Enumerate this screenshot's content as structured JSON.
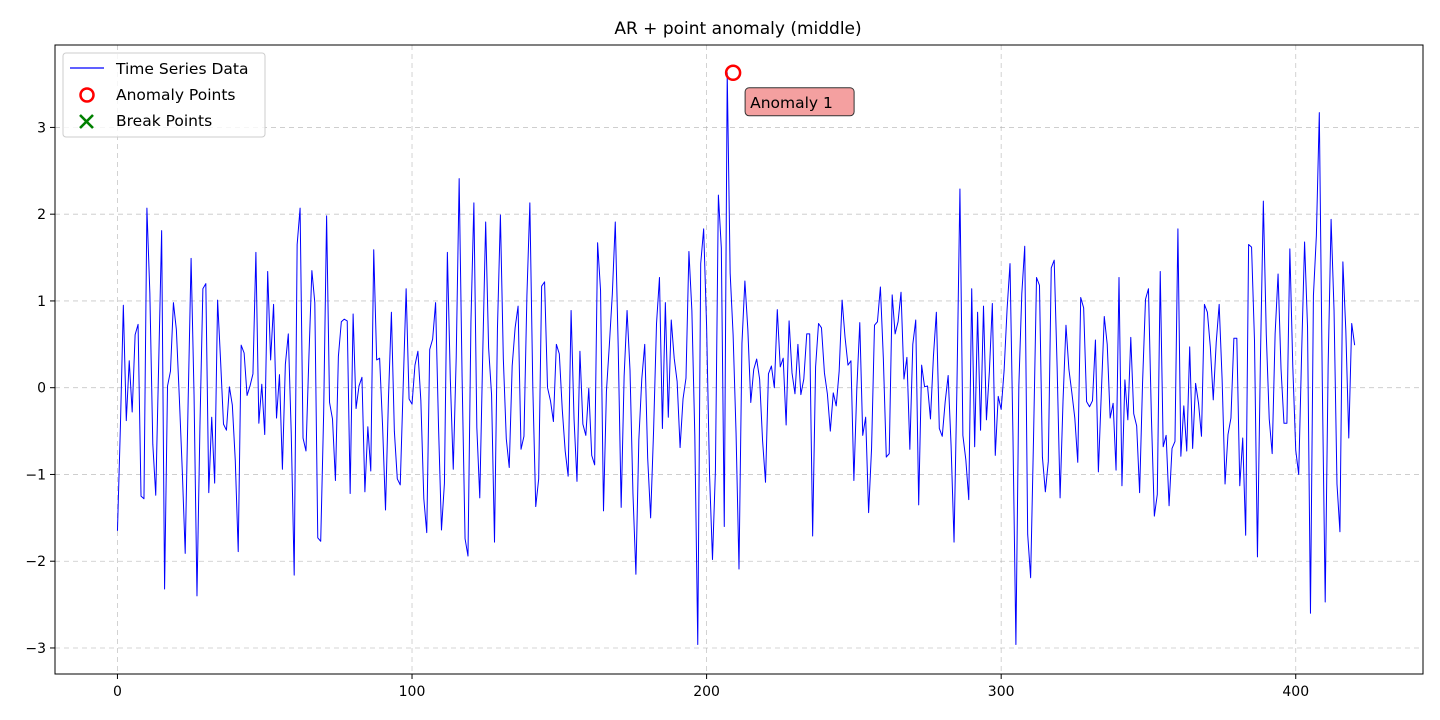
{
  "chart_data": {
    "type": "line",
    "title": "AR + point anomaly (middle)",
    "xlabel": "",
    "ylabel": "",
    "xlim": [
      -21.2,
      443.2
    ],
    "ylim": [
      -3.3,
      3.95
    ],
    "x_ticks": [
      0,
      100,
      200,
      300,
      400
    ],
    "y_ticks": [
      -3,
      -2,
      -1,
      0,
      1,
      2,
      3
    ],
    "x_tick_labels": [
      "0",
      "100",
      "200",
      "300",
      "400"
    ],
    "y_tick_labels": [
      "−3",
      "−2",
      "−1",
      "0",
      "1",
      "2",
      "3"
    ],
    "grid": true,
    "legend_position": "top-left",
    "legend": [
      {
        "label": "Time Series Data",
        "marker": "line",
        "color": "#0000ff"
      },
      {
        "label": "Anomaly Points",
        "marker": "circle",
        "color": "#ff0000"
      },
      {
        "label": "Break Points",
        "marker": "x",
        "color": "#008000"
      }
    ],
    "series": [
      {
        "name": "Time Series Data",
        "color": "#0000ff",
        "values": [
          -1.65,
          -0.45,
          0.95,
          -0.38,
          0.31,
          -0.28,
          0.61,
          0.73,
          -1.25,
          -1.28,
          2.07,
          1.09,
          -0.65,
          -1.24,
          0.28,
          1.81,
          -2.32,
          0.02,
          0.19,
          0.98,
          0.67,
          -0.11,
          -0.95,
          -1.91,
          -0.15,
          1.49,
          -0.08,
          -2.4,
          -0.45,
          1.14,
          1.2,
          -1.21,
          -0.34,
          -1.1,
          1.01,
          0.32,
          -0.42,
          -0.49,
          0.01,
          -0.2,
          -0.84,
          -1.89,
          0.49,
          0.4,
          -0.09,
          0.02,
          0.16,
          1.56,
          -0.41,
          0.04,
          -0.54,
          1.34,
          0.32,
          0.96,
          -0.35,
          0.15,
          -0.94,
          0.27,
          0.62,
          -0.53,
          -2.16,
          1.65,
          2.07,
          -0.58,
          -0.73,
          0.36,
          1.35,
          0.98,
          -1.73,
          -1.77,
          -0.3,
          1.98,
          -0.17,
          -0.36,
          -1.07,
          0.36,
          0.76,
          0.79,
          0.77,
          -1.22,
          0.85,
          -0.24,
          0.02,
          0.12,
          -1.2,
          -0.45,
          -0.96,
          1.59,
          0.32,
          0.34,
          -0.44,
          -1.41,
          -0.12,
          0.87,
          -0.5,
          -1.05,
          -1.12,
          0.02,
          1.14,
          -0.13,
          -0.19,
          0.26,
          0.42,
          -0.15,
          -1.28,
          -1.67,
          0.44,
          0.56,
          0.98,
          -0.45,
          -1.64,
          -1.1,
          1.56,
          0.1,
          -0.94,
          0.35,
          2.41,
          0.12,
          -1.74,
          -1.94,
          0.76,
          2.13,
          -0.46,
          -1.27,
          0.38,
          1.91,
          0.46,
          -0.08,
          -1.78,
          0.68,
          1.99,
          0.33,
          -0.59,
          -0.92,
          0.25,
          0.69,
          0.94,
          -0.71,
          -0.56,
          1.06,
          2.13,
          0.01,
          -1.37,
          -1.05,
          1.17,
          1.22,
          0.0,
          -0.15,
          -0.39,
          0.5,
          0.39,
          -0.25,
          -0.73,
          -1.02,
          0.89,
          -0.36,
          -1.08,
          0.42,
          -0.42,
          -0.55,
          -0.01,
          -0.78,
          -0.89,
          1.67,
          1.12,
          -1.42,
          -0.04,
          0.5,
          1.08,
          1.91,
          0.46,
          -1.38,
          0.13,
          0.89,
          0.2,
          -1.22,
          -2.15,
          -0.6,
          0.1,
          0.5,
          -0.81,
          -1.5,
          -0.5,
          0.74,
          1.27,
          -0.47,
          0.98,
          -0.34,
          0.78,
          0.34,
          0.07,
          -0.69,
          -0.13,
          0.11,
          1.57,
          0.89,
          -0.55,
          -2.96,
          1.43,
          1.83,
          0.71,
          -1.0,
          -1.98,
          -0.95,
          2.22,
          1.61,
          -1.6,
          3.63,
          1.32,
          0.61,
          -0.52,
          -2.09,
          0.51,
          1.23,
          0.67,
          -0.17,
          0.21,
          0.33,
          0.1,
          -0.61,
          -1.09,
          0.16,
          0.25,
          0.0,
          0.9,
          0.24,
          0.34,
          -0.43,
          0.77,
          0.17,
          -0.07,
          0.5,
          -0.08,
          0.1,
          0.62,
          0.62,
          -1.71,
          0.24,
          0.74,
          0.69,
          0.17,
          -0.07,
          -0.5,
          -0.06,
          -0.21,
          0.19,
          1.01,
          0.58,
          0.26,
          0.31,
          -1.07,
          -0.01,
          0.75,
          -0.55,
          -0.34,
          -1.44,
          -0.7,
          0.72,
          0.76,
          1.16,
          0.34,
          -0.8,
          -0.76,
          1.07,
          0.62,
          0.76,
          1.1,
          0.1,
          0.35,
          -0.71,
          0.5,
          0.78,
          -1.35,
          0.26,
          0.01,
          0.02,
          -0.36,
          0.36,
          0.87,
          -0.47,
          -0.56,
          -0.16,
          0.14,
          -0.67,
          -1.78,
          0.05,
          2.29,
          -0.55,
          -0.83,
          -1.29,
          1.14,
          -0.68,
          0.87,
          -0.49,
          0.94,
          -0.37,
          0.19,
          0.97,
          -0.78,
          -0.1,
          -0.25,
          0.2,
          0.9,
          1.43,
          -0.55,
          -2.96,
          0.02,
          1.08,
          1.63,
          -1.69,
          -2.19,
          -0.56,
          1.27,
          1.18,
          -0.8,
          -1.2,
          -0.85,
          1.38,
          1.47,
          0.23,
          -1.27,
          -0.15,
          0.72,
          0.21,
          -0.06,
          -0.35,
          -0.86,
          1.04,
          0.92,
          -0.16,
          -0.22,
          -0.15,
          0.55,
          -0.97,
          -0.06,
          0.82,
          0.5,
          -0.35,
          -0.18,
          -0.95,
          1.27,
          -1.13,
          0.09,
          -0.37,
          0.58,
          -0.3,
          -0.44,
          -1.21,
          0.06,
          1.02,
          1.14,
          -0.34,
          -1.48,
          -1.23,
          1.34,
          -0.68,
          -0.55,
          -1.36,
          -0.7,
          -0.62,
          1.83,
          -0.79,
          -0.21,
          -0.73,
          0.47,
          -0.7,
          0.05,
          -0.18,
          -0.56,
          0.96,
          0.87,
          0.47,
          -0.14,
          0.52,
          0.96,
          0.1,
          -1.11,
          -0.54,
          -0.35,
          0.57,
          0.57,
          -1.13,
          -0.58,
          -1.7,
          1.65,
          1.62,
          0.54,
          -1.95,
          0.31,
          2.15,
          0.61,
          -0.36,
          -0.76,
          0.62,
          1.31,
          0.22,
          -0.41,
          -0.41,
          1.6,
          0.24,
          -0.72,
          -1.0,
          0.4,
          1.68,
          0.7,
          -2.6,
          1.06,
          1.75,
          3.17,
          0.09,
          -2.47,
          0.26,
          1.94,
          0.89,
          -1.11,
          -1.66,
          1.45,
          0.66,
          -0.58,
          0.74,
          0.49
        ]
      }
    ],
    "anomaly_points": [
      {
        "x": 209,
        "y": 3.63,
        "label": "Anomaly 1"
      }
    ],
    "break_points": []
  }
}
